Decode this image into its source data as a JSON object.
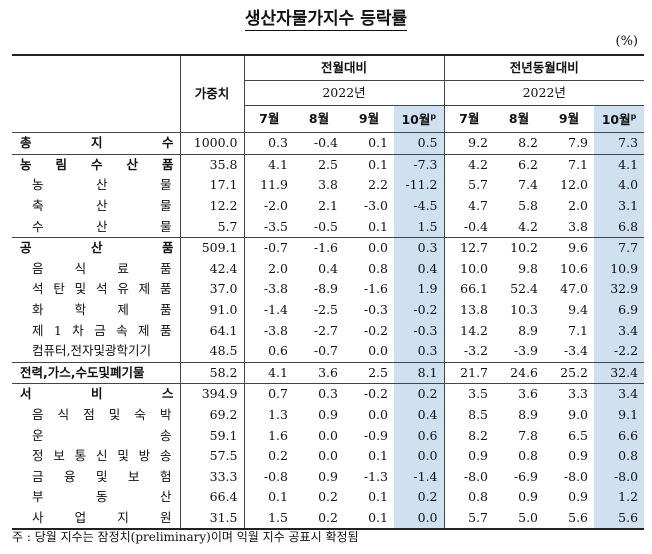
{
  "title": "생산자물가지수 등락률",
  "unit": "(%)",
  "header": {
    "weight_label": "가중치",
    "group_mom": "전월대비",
    "group_yoy": "전년동월대비",
    "year_mom": "2022년",
    "year_yoy": "2022년",
    "months": [
      "7월",
      "8월",
      "9월",
      "10월"
    ],
    "prelim_mark": "p"
  },
  "rows": [
    {
      "name": "총지수",
      "chars": [
        "총",
        "지",
        "수"
      ],
      "level": "section",
      "weight": "1000.0",
      "mom": [
        "0.3",
        "-0.4",
        "0.1",
        "0.5"
      ],
      "yoy": [
        "9.2",
        "8.2",
        "7.9",
        "7.3"
      ]
    },
    {
      "name": "농림수산품",
      "chars": [
        "농",
        "림",
        "수",
        "산",
        "품"
      ],
      "level": "section",
      "weight": "35.8",
      "mom": [
        "4.1",
        "2.5",
        "0.1",
        "-7.3"
      ],
      "yoy": [
        "4.2",
        "6.2",
        "7.1",
        "4.1"
      ]
    },
    {
      "name": "농산물",
      "chars": [
        "농",
        "산",
        "물"
      ],
      "level": "sub",
      "weight": "17.1",
      "mom": [
        "11.9",
        "3.8",
        "2.2",
        "-11.2"
      ],
      "yoy": [
        "5.7",
        "7.4",
        "12.0",
        "4.0"
      ]
    },
    {
      "name": "축산물",
      "chars": [
        "축",
        "산",
        "물"
      ],
      "level": "sub",
      "weight": "12.2",
      "mom": [
        "-2.0",
        "2.1",
        "-3.0",
        "-4.5"
      ],
      "yoy": [
        "4.7",
        "5.8",
        "2.0",
        "3.1"
      ]
    },
    {
      "name": "수산물",
      "chars": [
        "수",
        "산",
        "물"
      ],
      "level": "sub",
      "weight": "5.7",
      "mom": [
        "-3.5",
        "-0.5",
        "0.1",
        "1.5"
      ],
      "yoy": [
        "-0.4",
        "4.2",
        "3.8",
        "6.8"
      ]
    },
    {
      "name": "공산품",
      "chars": [
        "공",
        "산",
        "품"
      ],
      "level": "section",
      "weight": "509.1",
      "mom": [
        "-0.7",
        "-1.6",
        "0.0",
        "0.3"
      ],
      "yoy": [
        "12.7",
        "10.2",
        "9.6",
        "7.7"
      ]
    },
    {
      "name": "음식료품",
      "chars": [
        "음",
        "식",
        "료",
        "품"
      ],
      "level": "sub",
      "weight": "42.4",
      "mom": [
        "2.0",
        "0.4",
        "0.8",
        "0.4"
      ],
      "yoy": [
        "10.0",
        "9.8",
        "10.6",
        "10.9"
      ]
    },
    {
      "name": "석탄및석유제품",
      "chars": [
        "석",
        "탄",
        "및",
        "석",
        "유",
        "제",
        "품"
      ],
      "level": "sub",
      "weight": "37.0",
      "mom": [
        "-3.8",
        "-8.9",
        "-1.6",
        "1.9"
      ],
      "yoy": [
        "66.1",
        "52.4",
        "47.0",
        "32.9"
      ]
    },
    {
      "name": "화학제품",
      "chars": [
        "화",
        "학",
        "제",
        "품"
      ],
      "level": "sub",
      "weight": "91.0",
      "mom": [
        "-1.4",
        "-2.5",
        "-0.3",
        "-0.2"
      ],
      "yoy": [
        "13.8",
        "10.3",
        "9.4",
        "6.9"
      ]
    },
    {
      "name": "제1차금속제품",
      "chars": [
        "제",
        "1",
        "차",
        "금",
        "속",
        "제",
        "품"
      ],
      "level": "sub",
      "weight": "64.1",
      "mom": [
        "-3.8",
        "-2.7",
        "-0.2",
        "-0.3"
      ],
      "yoy": [
        "14.2",
        "8.9",
        "7.1",
        "3.4"
      ]
    },
    {
      "name": "컴퓨터,전자및광학기기",
      "chars": [
        "컴퓨터,전자및광학기기"
      ],
      "level": "sub",
      "weight": "48.5",
      "mom": [
        "0.6",
        "-0.7",
        "0.0",
        "0.3"
      ],
      "yoy": [
        "-3.2",
        "-3.9",
        "-3.4",
        "-2.2"
      ]
    },
    {
      "name": "전력,가스,수도및폐기물",
      "chars": [
        "전력,가스,수도및폐기물"
      ],
      "level": "section",
      "weight": "58.2",
      "mom": [
        "4.1",
        "3.6",
        "2.5",
        "8.1"
      ],
      "yoy": [
        "21.7",
        "24.6",
        "25.2",
        "32.4"
      ]
    },
    {
      "name": "서비스",
      "chars": [
        "서",
        "비",
        "스"
      ],
      "level": "section",
      "weight": "394.9",
      "mom": [
        "0.7",
        "0.3",
        "-0.2",
        "0.2"
      ],
      "yoy": [
        "3.5",
        "3.6",
        "3.3",
        "3.4"
      ]
    },
    {
      "name": "음식점및숙박",
      "chars": [
        "음",
        "식",
        "점",
        "및",
        "숙",
        "박"
      ],
      "level": "sub",
      "weight": "69.2",
      "mom": [
        "1.3",
        "0.9",
        "0.0",
        "0.4"
      ],
      "yoy": [
        "8.5",
        "8.9",
        "9.0",
        "9.1"
      ]
    },
    {
      "name": "운송",
      "chars": [
        "운",
        "송"
      ],
      "level": "sub",
      "weight": "59.1",
      "mom": [
        "1.6",
        "0.0",
        "-0.9",
        "0.6"
      ],
      "yoy": [
        "8.2",
        "7.8",
        "6.5",
        "6.6"
      ]
    },
    {
      "name": "정보통신및방송",
      "chars": [
        "정",
        "보",
        "통",
        "신",
        "및",
        "방",
        "송"
      ],
      "level": "sub",
      "weight": "57.5",
      "mom": [
        "0.2",
        "0.0",
        "0.1",
        "0.0"
      ],
      "yoy": [
        "0.9",
        "0.8",
        "0.9",
        "0.8"
      ]
    },
    {
      "name": "금융및보험",
      "chars": [
        "금",
        "융",
        "및",
        "보",
        "험"
      ],
      "level": "sub",
      "weight": "33.3",
      "mom": [
        "-0.8",
        "0.9",
        "-1.3",
        "-1.4"
      ],
      "yoy": [
        "-8.0",
        "-6.9",
        "-8.0",
        "-8.0"
      ]
    },
    {
      "name": "부동산",
      "chars": [
        "부",
        "동",
        "산"
      ],
      "level": "sub",
      "weight": "66.4",
      "mom": [
        "0.1",
        "0.2",
        "0.1",
        "0.2"
      ],
      "yoy": [
        "0.8",
        "0.9",
        "0.9",
        "1.2"
      ]
    },
    {
      "name": "사업지원",
      "chars": [
        "사",
        "업",
        "지",
        "원"
      ],
      "level": "sub",
      "weight": "31.5",
      "mom": [
        "1.5",
        "0.2",
        "0.1",
        "0.0"
      ],
      "yoy": [
        "5.7",
        "5.0",
        "5.6",
        "5.6"
      ]
    }
  ],
  "note": "주 : 당월 지수는 잠정치(preliminary)이며 익월 지수 공표시 확정됨",
  "colors": {
    "highlight": "#cfe0f0"
  }
}
